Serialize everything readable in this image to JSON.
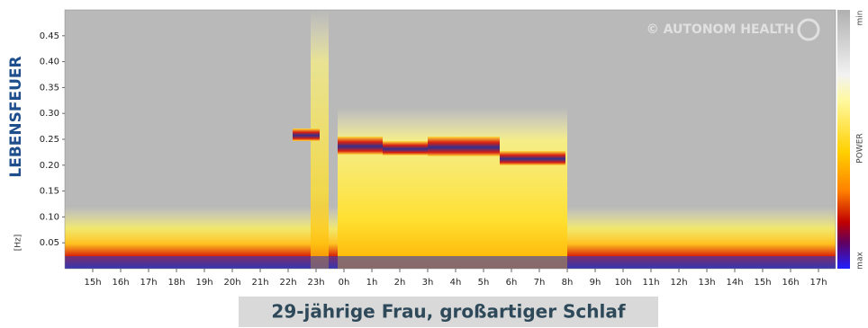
{
  "chart_data": {
    "type": "spectrogram",
    "title": "LEBENSFEUER",
    "y_label": "[Hz]",
    "watermark": "© AUTONOM HEALTH",
    "colorbar": {
      "top_label": "min",
      "label": "POWER",
      "bottom_label": "max"
    },
    "categories": [
      "15h",
      "16h",
      "17h",
      "18h",
      "19h",
      "20h",
      "21h",
      "22h",
      "23h",
      "0h",
      "1h",
      "2h",
      "3h",
      "4h",
      "5h",
      "6h",
      "7h",
      "8h",
      "9h",
      "10h",
      "11h",
      "12h",
      "13h",
      "14h",
      "15h",
      "16h",
      "17h"
    ],
    "ylim": [
      0,
      0.5
    ],
    "yticks": [
      0.05,
      {
        "value": 0.1,
        "label": "0.10"
      },
      0.15,
      {
        "value": 0.2,
        "label": "0.20"
      },
      0.25,
      {
        "value": 0.3,
        "label": "0.30"
      },
      0.35,
      {
        "value": 0.4,
        "label": "0.40"
      },
      0.45
    ]
  },
  "caption": "29-jährige Frau, großartiger Schlaf"
}
